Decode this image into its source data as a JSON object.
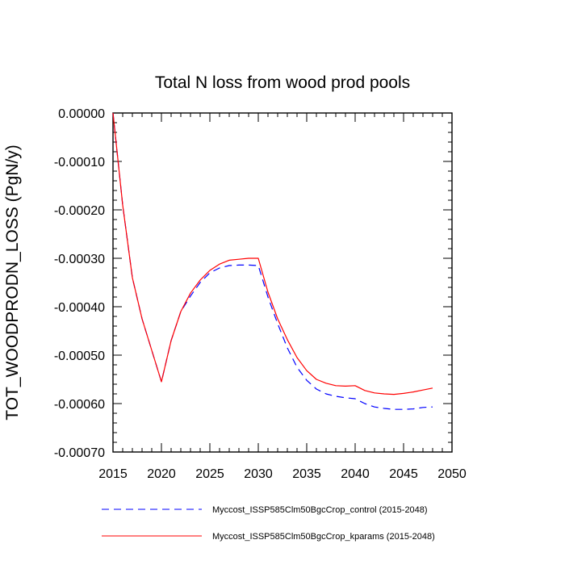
{
  "chart_data": {
    "type": "line",
    "title": "Total N loss from wood prod pools",
    "xlabel": "",
    "ylabel": "TOT_WOODPRODN_LOSS  (PgN/y)",
    "xlim": [
      2015,
      2050
    ],
    "ylim": [
      -0.0007,
      0.0
    ],
    "x_ticks": [
      2015,
      2020,
      2025,
      2030,
      2035,
      2040,
      2045,
      2050
    ],
    "x_tick_labels": [
      "2015",
      "2020",
      "2025",
      "2030",
      "2035",
      "2040",
      "2045",
      "2050"
    ],
    "y_ticks": [
      0.0,
      -0.0001,
      -0.0002,
      -0.0003,
      -0.0004,
      -0.0005,
      -0.0006,
      -0.0007
    ],
    "y_tick_labels": [
      "0.00000",
      "-0.00010",
      "-0.00020",
      "-0.00030",
      "-0.00040",
      "-0.00050",
      "-0.00060",
      "-0.00070"
    ],
    "grid": false,
    "legend_position": "bottom",
    "x": [
      2015,
      2016,
      2017,
      2018,
      2019,
      2020,
      2021,
      2022,
      2023,
      2024,
      2025,
      2026,
      2027,
      2028,
      2029,
      2030,
      2031,
      2032,
      2033,
      2034,
      2035,
      2036,
      2037,
      2038,
      2039,
      2040,
      2041,
      2042,
      2043,
      2044,
      2045,
      2046,
      2047,
      2048
    ],
    "series": [
      {
        "name": "Myccost_ISSP585Clm50BgcCrop_control (2015-2048)",
        "color": "#0000ff",
        "dash": "dashed",
        "values": [
          0.0,
          -0.00019,
          -0.00034,
          -0.000425,
          -0.00049,
          -0.000555,
          -0.00047,
          -0.00041,
          -0.000378,
          -0.00035,
          -0.00033,
          -0.00032,
          -0.000315,
          -0.000314,
          -0.000314,
          -0.000315,
          -0.00038,
          -0.000435,
          -0.000485,
          -0.000525,
          -0.000552,
          -0.00057,
          -0.00058,
          -0.000585,
          -0.000588,
          -0.00059,
          -0.0006,
          -0.000607,
          -0.00061,
          -0.000612,
          -0.000612,
          -0.000611,
          -0.000608,
          -0.000607
        ]
      },
      {
        "name": "Myccost_ISSP585Clm50BgcCrop_kparams (2015-2048)",
        "color": "#ff0000",
        "dash": "solid",
        "values": [
          0.0,
          -0.00019,
          -0.00034,
          -0.000425,
          -0.00049,
          -0.000555,
          -0.00047,
          -0.00041,
          -0.000372,
          -0.000345,
          -0.000325,
          -0.000312,
          -0.000304,
          -0.000302,
          -0.0003,
          -0.0003,
          -0.00037,
          -0.000425,
          -0.000468,
          -0.000505,
          -0.000532,
          -0.00055,
          -0.000558,
          -0.000563,
          -0.000564,
          -0.000563,
          -0.000573,
          -0.000578,
          -0.00058,
          -0.000581,
          -0.000579,
          -0.000576,
          -0.000572,
          -0.000568
        ]
      }
    ]
  }
}
